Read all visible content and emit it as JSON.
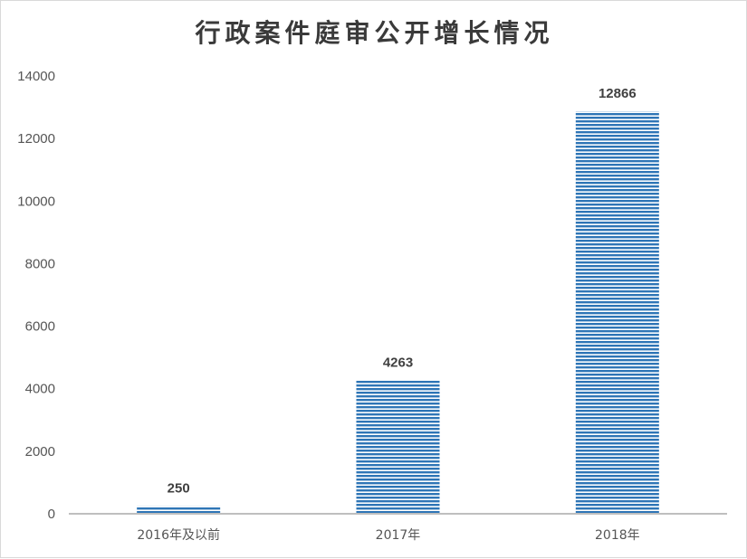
{
  "chart_data": {
    "type": "bar",
    "title": "行政案件庭审公开增长情况",
    "categories": [
      "2016年及以前",
      "2017年",
      "2018年"
    ],
    "values": [
      250,
      4263,
      12866
    ],
    "data_labels": [
      "250",
      "4263",
      "12866"
    ],
    "ylim": [
      0,
      14000
    ],
    "yticks": [
      0,
      2000,
      4000,
      6000,
      8000,
      10000,
      12000,
      14000
    ],
    "ytick_labels": [
      "0",
      "2000",
      "4000",
      "6000",
      "8000",
      "10000",
      "12000",
      "14000"
    ],
    "xlabel": "",
    "ylabel": "",
    "grid": false,
    "legend": "none",
    "bar_color": "#2e75b6",
    "bar_pattern": "horizontal-stripes"
  }
}
